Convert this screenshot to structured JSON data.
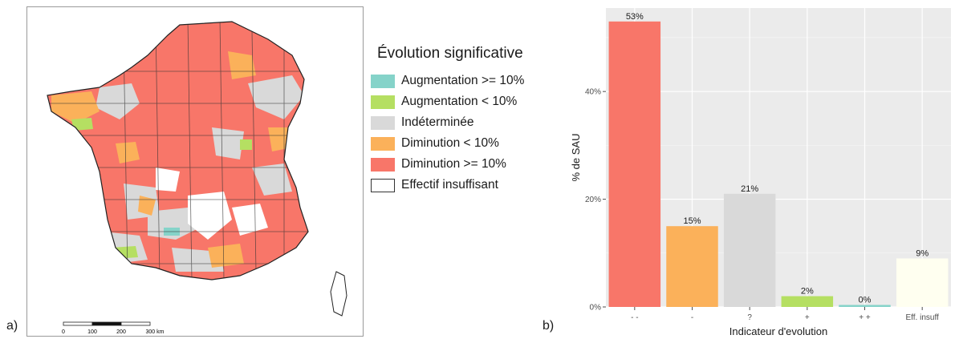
{
  "panel_a": {
    "label": "a)",
    "scale_bar": {
      "labels": [
        "0",
        "100",
        "200",
        "300 km"
      ]
    },
    "legend": {
      "title": "Évolution significative",
      "items": [
        {
          "label": "Augmentation >= 10%",
          "color": "#85d3c9"
        },
        {
          "label": "Augmentation < 10%",
          "color": "#b5df62"
        },
        {
          "label": "Indéterminée",
          "color": "#d9d9d9"
        },
        {
          "label": "Diminution < 10%",
          "color": "#fbb15a"
        },
        {
          "label": "Diminution >= 10%",
          "color": "#f87669"
        },
        {
          "label": "Effectif insuffisant",
          "color": "#ffffff"
        }
      ]
    }
  },
  "panel_b": {
    "label": "b)"
  },
  "chart_data": {
    "type": "bar",
    "categories": [
      "- -",
      "-",
      "?",
      "+",
      "+ +",
      "Eff. insuff"
    ],
    "values": [
      53,
      15,
      21,
      2,
      0,
      9
    ],
    "data_labels": [
      "53%",
      "15%",
      "21%",
      "2%",
      "0%",
      "9%"
    ],
    "colors": [
      "#f87669",
      "#fbb15a",
      "#d9d9d9",
      "#b5df62",
      "#85d3c9",
      "#fffff0"
    ],
    "xlabel": "Indicateur d'evolution",
    "ylabel": "% de SAU",
    "yticks": [
      0,
      20,
      40
    ],
    "ytick_labels": [
      "0%",
      "20%",
      "40%"
    ],
    "ylim": [
      0,
      55.5
    ],
    "grid": true,
    "background": "#ebebeb"
  }
}
